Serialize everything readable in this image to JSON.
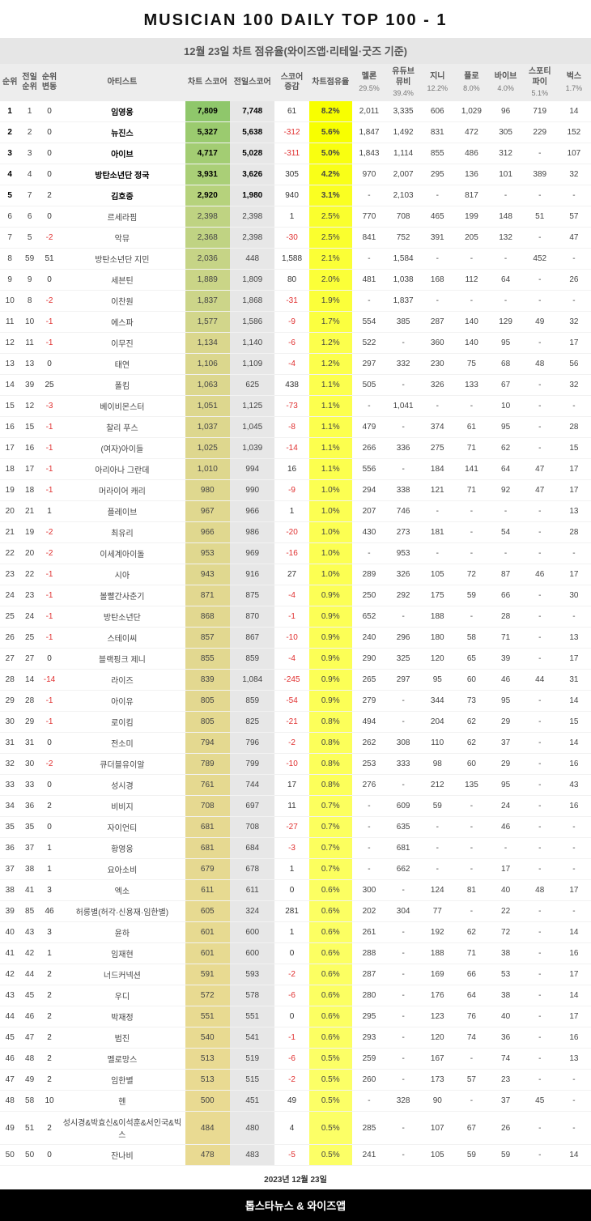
{
  "title": "MUSICIAN 100 DAILY TOP 100 - 1",
  "subtitle": "12월 23일  차트 점유율(와이즈앱·리테일·굿즈 기준)",
  "footer_date": "2023년 12월 23일",
  "footer_source": "톱스타뉴스 & 와이즈앱",
  "columns": {
    "rank": "순위",
    "prev": "전일\n순위",
    "chg": "순위\n변동",
    "artist": "아티스트",
    "score": "차트 스코어",
    "pscore": "전일스코어",
    "dscore": "스코어\n증감",
    "share": "차트점유율",
    "p": [
      {
        "name": "멜론",
        "pct": "29.5%"
      },
      {
        "name": "유듀브\n뮤비",
        "pct": "39.4%"
      },
      {
        "name": "지니",
        "pct": "12.2%"
      },
      {
        "name": "플로",
        "pct": "8.0%"
      },
      {
        "name": "바이브",
        "pct": "4.0%"
      },
      {
        "name": "스포티\n파이",
        "pct": "5.1%"
      },
      {
        "name": "벅스",
        "pct": "1.7%"
      }
    ]
  },
  "style": {
    "score_bg_top": "#8fc76b",
    "score_bg_mid": "#d8d28a",
    "score_bg_low": "#e9d98f",
    "share_bg_top": "#f8ff00",
    "share_bg_mid": "#fbff3a",
    "share_bg_low": "#fcff66",
    "pscore_bg": "#e7e7e7"
  },
  "rows": [
    {
      "r": 1,
      "p": 1,
      "c": 0,
      "a": "임영웅",
      "s": "7,809",
      "ps": "7,748",
      "d": 61,
      "sh": "8.2%",
      "m": [
        "2,011",
        "3,335",
        "606",
        "1,029",
        "96",
        "719",
        "14"
      ],
      "bold": 1,
      "sc": "#8fc76b",
      "pc": "#e7e7e7",
      "hc": "#f8ff00"
    },
    {
      "r": 2,
      "p": 2,
      "c": 0,
      "a": "뉴진스",
      "s": "5,327",
      "ps": "5,638",
      "d": -312,
      "sh": "5.6%",
      "m": [
        "1,847",
        "1,492",
        "831",
        "472",
        "305",
        "229",
        "152"
      ],
      "bold": 1,
      "sc": "#9bcb6f",
      "pc": "#e7e7e7",
      "hc": "#f8ff00"
    },
    {
      "r": 3,
      "p": 3,
      "c": 0,
      "a": "아이브",
      "s": "4,717",
      "ps": "5,028",
      "d": -311,
      "sh": "5.0%",
      "m": [
        "1,843",
        "1,114",
        "855",
        "486",
        "312",
        "-",
        "107"
      ],
      "bold": 1,
      "sc": "#a3cd73",
      "pc": "#e7e7e7",
      "hc": "#f9ff10"
    },
    {
      "r": 4,
      "p": 4,
      "c": 0,
      "a": "방탄소년단 정국",
      "s": "3,931",
      "ps": "3,626",
      "d": 305,
      "sh": "4.2%",
      "m": [
        "970",
        "2,007",
        "295",
        "136",
        "101",
        "389",
        "32"
      ],
      "bold": 1,
      "sc": "#aacf77",
      "pc": "#e7e7e7",
      "hc": "#f9ff18"
    },
    {
      "r": 5,
      "p": 7,
      "c": 2,
      "a": "김호중",
      "s": "2,920",
      "ps": "1,980",
      "d": 940,
      "sh": "3.1%",
      "m": [
        "-",
        "2,103",
        "-",
        "817",
        "-",
        "-",
        "-"
      ],
      "bold": 1,
      "sc": "#b6d27c",
      "pc": "#e7e7e7",
      "hc": "#faff22"
    },
    {
      "r": 6,
      "p": 6,
      "c": 0,
      "a": "르세라핌",
      "s": "2,398",
      "ps": "2,398",
      "d": 1,
      "sh": "2.5%",
      "m": [
        "770",
        "708",
        "465",
        "199",
        "148",
        "51",
        "57"
      ],
      "sc": "#bfd382",
      "pc": "#e7e7e7",
      "hc": "#faff2e"
    },
    {
      "r": 7,
      "p": 5,
      "c": -2,
      "a": "악뮤",
      "s": "2,368",
      "ps": "2,398",
      "d": -30,
      "sh": "2.5%",
      "m": [
        "841",
        "752",
        "391",
        "205",
        "132",
        "-",
        "47"
      ],
      "sc": "#c0d383",
      "pc": "#e7e7e7",
      "hc": "#faff2e"
    },
    {
      "r": 8,
      "p": 59,
      "c": 51,
      "a": "방탄소년단 지민",
      "s": "2,036",
      "ps": "448",
      "d": 1588,
      "sh": "2.1%",
      "m": [
        "-",
        "1,584",
        "-",
        "-",
        "-",
        "452",
        "-"
      ],
      "sc": "#c6d486",
      "pc": "#e7e7e7",
      "hc": "#fbff36"
    },
    {
      "r": 9,
      "p": 9,
      "c": 0,
      "a": "세븐틴",
      "s": "1,889",
      "ps": "1,809",
      "d": 80,
      "sh": "2.0%",
      "m": [
        "481",
        "1,038",
        "168",
        "112",
        "64",
        "-",
        "26"
      ],
      "sc": "#cad587",
      "pc": "#e7e7e7",
      "hc": "#fbff38"
    },
    {
      "r": 10,
      "p": 8,
      "c": -2,
      "a": "이찬원",
      "s": "1,837",
      "ps": "1,868",
      "d": -31,
      "sh": "1.9%",
      "m": [
        "-",
        "1,837",
        "-",
        "-",
        "-",
        "-",
        "-"
      ],
      "sc": "#ccd589",
      "pc": "#e7e7e7",
      "hc": "#fbff3a"
    },
    {
      "r": 11,
      "p": 10,
      "c": -1,
      "a": "에스파",
      "s": "1,577",
      "ps": "1,586",
      "d": -9,
      "sh": "1.7%",
      "m": [
        "554",
        "385",
        "287",
        "140",
        "129",
        "49",
        "32"
      ],
      "sc": "#d2d68b",
      "pc": "#e7e7e7",
      "hc": "#fbff40"
    },
    {
      "r": 12,
      "p": 11,
      "c": -1,
      "a": "이무진",
      "s": "1,134",
      "ps": "1,140",
      "d": -6,
      "sh": "1.2%",
      "m": [
        "522",
        "-",
        "360",
        "140",
        "95",
        "-",
        "17"
      ],
      "sc": "#dad78d",
      "pc": "#e7e7e7",
      "hc": "#fcff4c"
    },
    {
      "r": 13,
      "p": 13,
      "c": 0,
      "a": "태연",
      "s": "1,106",
      "ps": "1,109",
      "d": -4,
      "sh": "1.2%",
      "m": [
        "297",
        "332",
        "230",
        "75",
        "68",
        "48",
        "56"
      ],
      "sc": "#dbd78d",
      "pc": "#e7e7e7",
      "hc": "#fcff4c"
    },
    {
      "r": 14,
      "p": 39,
      "c": 25,
      "a": "폴킴",
      "s": "1,063",
      "ps": "625",
      "d": 438,
      "sh": "1.1%",
      "m": [
        "505",
        "-",
        "326",
        "133",
        "67",
        "-",
        "32"
      ],
      "sc": "#dcd78e",
      "pc": "#e7e7e7",
      "hc": "#fcff4e"
    },
    {
      "r": 15,
      "p": 12,
      "c": -3,
      "a": "베이비몬스터",
      "s": "1,051",
      "ps": "1,125",
      "d": -73,
      "sh": "1.1%",
      "m": [
        "-",
        "1,041",
        "-",
        "-",
        "10",
        "-",
        "-"
      ],
      "sc": "#ddd78e",
      "pc": "#e7e7e7",
      "hc": "#fcff4e"
    },
    {
      "r": 16,
      "p": 15,
      "c": -1,
      "a": "찰리 푸스",
      "s": "1,037",
      "ps": "1,045",
      "d": -8,
      "sh": "1.1%",
      "m": [
        "479",
        "-",
        "374",
        "61",
        "95",
        "-",
        "28"
      ],
      "sc": "#ddd78e",
      "pc": "#e7e7e7",
      "hc": "#fcff4e"
    },
    {
      "r": 17,
      "p": 16,
      "c": -1,
      "a": "(여자)아이들",
      "s": "1,025",
      "ps": "1,039",
      "d": -14,
      "sh": "1.1%",
      "m": [
        "266",
        "336",
        "275",
        "71",
        "62",
        "-",
        "15"
      ],
      "sc": "#ded78e",
      "pc": "#e7e7e7",
      "hc": "#fcff4e"
    },
    {
      "r": 18,
      "p": 17,
      "c": -1,
      "a": "아리아나 그란데",
      "s": "1,010",
      "ps": "994",
      "d": 16,
      "sh": "1.1%",
      "m": [
        "556",
        "-",
        "184",
        "141",
        "64",
        "47",
        "17"
      ],
      "sc": "#ded78e",
      "pc": "#e7e7e7",
      "hc": "#fcff4e"
    },
    {
      "r": 19,
      "p": 18,
      "c": -1,
      "a": "머라이어 캐리",
      "s": "980",
      "ps": "990",
      "d": -9,
      "sh": "1.0%",
      "m": [
        "294",
        "338",
        "121",
        "71",
        "92",
        "47",
        "17"
      ],
      "sc": "#dfd88f",
      "pc": "#e7e7e7",
      "hc": "#fcff52"
    },
    {
      "r": 20,
      "p": 21,
      "c": 1,
      "a": "플레이브",
      "s": "967",
      "ps": "966",
      "d": 1,
      "sh": "1.0%",
      "m": [
        "207",
        "746",
        "-",
        "-",
        "-",
        "-",
        "13"
      ],
      "sc": "#e0d88f",
      "pc": "#e7e7e7",
      "hc": "#fcff52"
    },
    {
      "r": 21,
      "p": 19,
      "c": -2,
      "a": "최유리",
      "s": "966",
      "ps": "986",
      "d": -20,
      "sh": "1.0%",
      "m": [
        "430",
        "273",
        "181",
        "-",
        "54",
        "-",
        "28"
      ],
      "sc": "#e0d88f",
      "pc": "#e7e7e7",
      "hc": "#fcff52"
    },
    {
      "r": 22,
      "p": 20,
      "c": -2,
      "a": "이세계아이돌",
      "s": "953",
      "ps": "969",
      "d": -16,
      "sh": "1.0%",
      "m": [
        "-",
        "953",
        "-",
        "-",
        "-",
        "-",
        "-"
      ],
      "sc": "#e0d88f",
      "pc": "#e7e7e7",
      "hc": "#fcff52"
    },
    {
      "r": 23,
      "p": 22,
      "c": -1,
      "a": "시아",
      "s": "943",
      "ps": "916",
      "d": 27,
      "sh": "1.0%",
      "m": [
        "289",
        "326",
        "105",
        "72",
        "87",
        "46",
        "17"
      ],
      "sc": "#e0d88f",
      "pc": "#e7e7e7",
      "hc": "#fcff52"
    },
    {
      "r": 24,
      "p": 23,
      "c": -1,
      "a": "볼빨간사춘기",
      "s": "871",
      "ps": "875",
      "d": -4,
      "sh": "0.9%",
      "m": [
        "250",
        "292",
        "175",
        "59",
        "66",
        "-",
        "30"
      ],
      "sc": "#e2d890",
      "pc": "#e7e7e7",
      "hc": "#fcff56"
    },
    {
      "r": 25,
      "p": 24,
      "c": -1,
      "a": "방탄소년단",
      "s": "868",
      "ps": "870",
      "d": -1,
      "sh": "0.9%",
      "m": [
        "652",
        "-",
        "188",
        "-",
        "28",
        "-",
        "-"
      ],
      "sc": "#e2d890",
      "pc": "#e7e7e7",
      "hc": "#fcff56"
    },
    {
      "r": 26,
      "p": 25,
      "c": -1,
      "a": "스테이씨",
      "s": "857",
      "ps": "867",
      "d": -10,
      "sh": "0.9%",
      "m": [
        "240",
        "296",
        "180",
        "58",
        "71",
        "-",
        "13"
      ],
      "sc": "#e2d890",
      "pc": "#e7e7e7",
      "hc": "#fcff56"
    },
    {
      "r": 27,
      "p": 27,
      "c": 0,
      "a": "블랙핑크 제니",
      "s": "855",
      "ps": "859",
      "d": -4,
      "sh": "0.9%",
      "m": [
        "290",
        "325",
        "120",
        "65",
        "39",
        "-",
        "17"
      ],
      "sc": "#e2d890",
      "pc": "#e7e7e7",
      "hc": "#fcff56"
    },
    {
      "r": 28,
      "p": 14,
      "c": -14,
      "a": "라이즈",
      "s": "839",
      "ps": "1,084",
      "d": -245,
      "sh": "0.9%",
      "m": [
        "265",
        "297",
        "95",
        "60",
        "46",
        "44",
        "31"
      ],
      "sc": "#e3d890",
      "pc": "#e7e7e7",
      "hc": "#fcff56"
    },
    {
      "r": 29,
      "p": 28,
      "c": -1,
      "a": "아이유",
      "s": "805",
      "ps": "859",
      "d": -54,
      "sh": "0.9%",
      "m": [
        "279",
        "-",
        "344",
        "73",
        "95",
        "-",
        "14"
      ],
      "sc": "#e3d890",
      "pc": "#e7e7e7",
      "hc": "#fcff56"
    },
    {
      "r": 30,
      "p": 29,
      "c": -1,
      "a": "로이킴",
      "s": "805",
      "ps": "825",
      "d": -21,
      "sh": "0.8%",
      "m": [
        "494",
        "-",
        "204",
        "62",
        "29",
        "-",
        "15"
      ],
      "sc": "#e4d990",
      "pc": "#e7e7e7",
      "hc": "#fcff5a"
    },
    {
      "r": 31,
      "p": 31,
      "c": 0,
      "a": "전소미",
      "s": "794",
      "ps": "796",
      "d": -2,
      "sh": "0.8%",
      "m": [
        "262",
        "308",
        "110",
        "62",
        "37",
        "-",
        "14"
      ],
      "sc": "#e4d990",
      "pc": "#e7e7e7",
      "hc": "#fcff5a"
    },
    {
      "r": 32,
      "p": 30,
      "c": -2,
      "a": "큐더블유이알",
      "s": "789",
      "ps": "799",
      "d": -10,
      "sh": "0.8%",
      "m": [
        "253",
        "333",
        "98",
        "60",
        "29",
        "-",
        "16"
      ],
      "sc": "#e4d990",
      "pc": "#e7e7e7",
      "hc": "#fcff5a"
    },
    {
      "r": 33,
      "p": 33,
      "c": 0,
      "a": "성시경",
      "s": "761",
      "ps": "744",
      "d": 17,
      "sh": "0.8%",
      "m": [
        "276",
        "-",
        "212",
        "135",
        "95",
        "-",
        "43"
      ],
      "sc": "#e5d990",
      "pc": "#e7e7e7",
      "hc": "#fcff5a"
    },
    {
      "r": 34,
      "p": 36,
      "c": 2,
      "a": "비비지",
      "s": "708",
      "ps": "697",
      "d": 11,
      "sh": "0.7%",
      "m": [
        "-",
        "609",
        "59",
        "-",
        "24",
        "-",
        "16"
      ],
      "sc": "#e6d991",
      "pc": "#e7e7e7",
      "hc": "#fcff5e"
    },
    {
      "r": 35,
      "p": 35,
      "c": 0,
      "a": "자이언티",
      "s": "681",
      "ps": "708",
      "d": -27,
      "sh": "0.7%",
      "m": [
        "-",
        "635",
        "-",
        "-",
        "46",
        "-",
        "-"
      ],
      "sc": "#e6d991",
      "pc": "#e7e7e7",
      "hc": "#fcff5e"
    },
    {
      "r": 36,
      "p": 37,
      "c": 1,
      "a": "황영웅",
      "s": "681",
      "ps": "684",
      "d": -3,
      "sh": "0.7%",
      "m": [
        "-",
        "681",
        "-",
        "-",
        "-",
        "-",
        "-"
      ],
      "sc": "#e6d991",
      "pc": "#e7e7e7",
      "hc": "#fcff5e"
    },
    {
      "r": 37,
      "p": 38,
      "c": 1,
      "a": "요아소비",
      "s": "679",
      "ps": "678",
      "d": 1,
      "sh": "0.7%",
      "m": [
        "-",
        "662",
        "-",
        "-",
        "17",
        "-",
        "-"
      ],
      "sc": "#e6d991",
      "pc": "#e7e7e7",
      "hc": "#fcff5e"
    },
    {
      "r": 38,
      "p": 41,
      "c": 3,
      "a": "엑소",
      "s": "611",
      "ps": "611",
      "d": 0,
      "sh": "0.6%",
      "m": [
        "300",
        "-",
        "124",
        "81",
        "40",
        "48",
        "17"
      ],
      "sc": "#e7da91",
      "pc": "#e7e7e7",
      "hc": "#fcff62"
    },
    {
      "r": 39,
      "p": 85,
      "c": 46,
      "a": "허롱별(허각·신용재·임한별)",
      "s": "605",
      "ps": "324",
      "d": 281,
      "sh": "0.6%",
      "m": [
        "202",
        "304",
        "77",
        "-",
        "22",
        "-",
        "-"
      ],
      "sc": "#e7da91",
      "pc": "#e7e7e7",
      "hc": "#fcff62"
    },
    {
      "r": 40,
      "p": 43,
      "c": 3,
      "a": "윤하",
      "s": "601",
      "ps": "600",
      "d": 1,
      "sh": "0.6%",
      "m": [
        "261",
        "-",
        "192",
        "62",
        "72",
        "-",
        "14"
      ],
      "sc": "#e7da91",
      "pc": "#e7e7e7",
      "hc": "#fcff62"
    },
    {
      "r": 41,
      "p": 42,
      "c": 1,
      "a": "임재현",
      "s": "601",
      "ps": "600",
      "d": 0,
      "sh": "0.6%",
      "m": [
        "288",
        "-",
        "188",
        "71",
        "38",
        "-",
        "16"
      ],
      "sc": "#e7da91",
      "pc": "#e7e7e7",
      "hc": "#fcff62"
    },
    {
      "r": 42,
      "p": 44,
      "c": 2,
      "a": "너드커넥션",
      "s": "591",
      "ps": "593",
      "d": -2,
      "sh": "0.6%",
      "m": [
        "287",
        "-",
        "169",
        "66",
        "53",
        "-",
        "17"
      ],
      "sc": "#e8da91",
      "pc": "#e7e7e7",
      "hc": "#fcff62"
    },
    {
      "r": 43,
      "p": 45,
      "c": 2,
      "a": "우디",
      "s": "572",
      "ps": "578",
      "d": -6,
      "sh": "0.6%",
      "m": [
        "280",
        "-",
        "176",
        "64",
        "38",
        "-",
        "14"
      ],
      "sc": "#e8da91",
      "pc": "#e7e7e7",
      "hc": "#fcff62"
    },
    {
      "r": 44,
      "p": 46,
      "c": 2,
      "a": "박재정",
      "s": "551",
      "ps": "551",
      "d": 0,
      "sh": "0.6%",
      "m": [
        "295",
        "-",
        "123",
        "76",
        "40",
        "-",
        "17"
      ],
      "sc": "#e8da91",
      "pc": "#e7e7e7",
      "hc": "#fcff62"
    },
    {
      "r": 45,
      "p": 47,
      "c": 2,
      "a": "범진",
      "s": "540",
      "ps": "541",
      "d": -1,
      "sh": "0.6%",
      "m": [
        "293",
        "-",
        "120",
        "74",
        "36",
        "-",
        "16"
      ],
      "sc": "#e8da91",
      "pc": "#e7e7e7",
      "hc": "#fcff62"
    },
    {
      "r": 46,
      "p": 48,
      "c": 2,
      "a": "멜로망스",
      "s": "513",
      "ps": "519",
      "d": -6,
      "sh": "0.5%",
      "m": [
        "259",
        "-",
        "167",
        "-",
        "74",
        "-",
        "13"
      ],
      "sc": "#e9da92",
      "pc": "#e7e7e7",
      "hc": "#fcff66"
    },
    {
      "r": 47,
      "p": 49,
      "c": 2,
      "a": "임한별",
      "s": "513",
      "ps": "515",
      "d": -2,
      "sh": "0.5%",
      "m": [
        "260",
        "-",
        "173",
        "57",
        "23",
        "-",
        "-"
      ],
      "sc": "#e9da92",
      "pc": "#e7e7e7",
      "hc": "#fcff66"
    },
    {
      "r": 48,
      "p": 58,
      "c": 10,
      "a": "헨",
      "s": "500",
      "ps": "451",
      "d": 49,
      "sh": "0.5%",
      "m": [
        "-",
        "328",
        "90",
        "-",
        "37",
        "45",
        "-"
      ],
      "sc": "#e9da92",
      "pc": "#e7e7e7",
      "hc": "#fcff66"
    },
    {
      "r": 49,
      "p": 51,
      "c": 2,
      "a": "성시경&박효신&이석훈&서인국&빅스",
      "s": "484",
      "ps": "480",
      "d": 4,
      "sh": "0.5%",
      "m": [
        "285",
        "-",
        "107",
        "67",
        "26",
        "-",
        "-"
      ],
      "sc": "#e9da92",
      "pc": "#e7e7e7",
      "hc": "#fcff66"
    },
    {
      "r": 50,
      "p": 50,
      "c": 0,
      "a": "잔나비",
      "s": "478",
      "ps": "483",
      "d": -5,
      "sh": "0.5%",
      "m": [
        "241",
        "-",
        "105",
        "59",
        "59",
        "-",
        "14"
      ],
      "sc": "#e9da92",
      "pc": "#e7e7e7",
      "hc": "#fcff66"
    }
  ]
}
